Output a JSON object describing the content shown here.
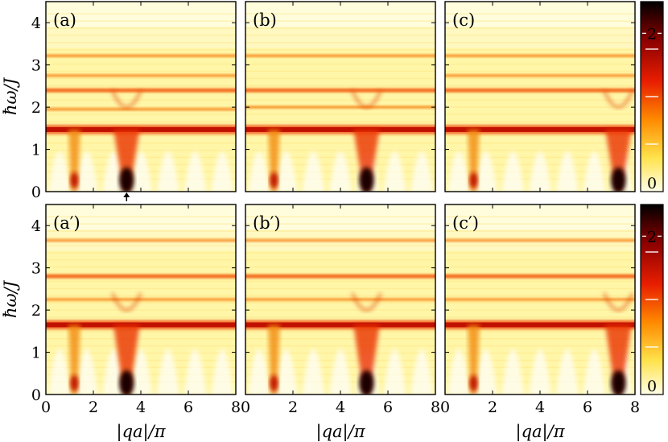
{
  "chart_data": {
    "type": "heatmap",
    "xlabel": "|qa|/π",
    "ylabel": "ħω/J",
    "xlim": [
      0,
      8
    ],
    "ylim": [
      0,
      4.5
    ],
    "xticks": [
      "0",
      "2",
      "4",
      "6",
      "8"
    ],
    "yticks": [
      "0",
      "1",
      "2",
      "3",
      "4"
    ],
    "colorbar": {
      "ticks": [
        "0",
        "2"
      ],
      "range": [
        0,
        2.4
      ],
      "colors": [
        "#ffffe8",
        "#ffe24a",
        "#ff8a00",
        "#e81e00",
        "#8a0000",
        "#000000"
      ]
    },
    "panels": [
      {
        "label": "(a)",
        "main_band": 1.47,
        "bands": [
          2.4,
          3.22,
          2.75,
          1.95
        ],
        "hotspots": [
          3.4,
          1.2
        ],
        "arrow_x": 3.4
      },
      {
        "label": "(b)",
        "main_band": 1.47,
        "bands": [
          2.4,
          3.22,
          2.0
        ],
        "hotspots": [
          5.1,
          1.2
        ]
      },
      {
        "label": "(c)",
        "main_band": 1.47,
        "bands": [
          2.4,
          3.22,
          2.75
        ],
        "hotspots": [
          7.3,
          1.2
        ]
      },
      {
        "label": "(a′)",
        "main_band": 1.65,
        "bands": [
          2.8,
          3.65,
          2.25
        ],
        "hotspots": [
          3.4,
          1.2
        ]
      },
      {
        "label": "(b′)",
        "main_band": 1.65,
        "bands": [
          2.8,
          3.65,
          2.25
        ],
        "hotspots": [
          5.1,
          1.2
        ]
      },
      {
        "label": "(c′)",
        "main_band": 1.65,
        "bands": [
          2.8,
          3.65,
          2.25
        ],
        "hotspots": [
          7.3,
          1.2
        ]
      }
    ]
  }
}
